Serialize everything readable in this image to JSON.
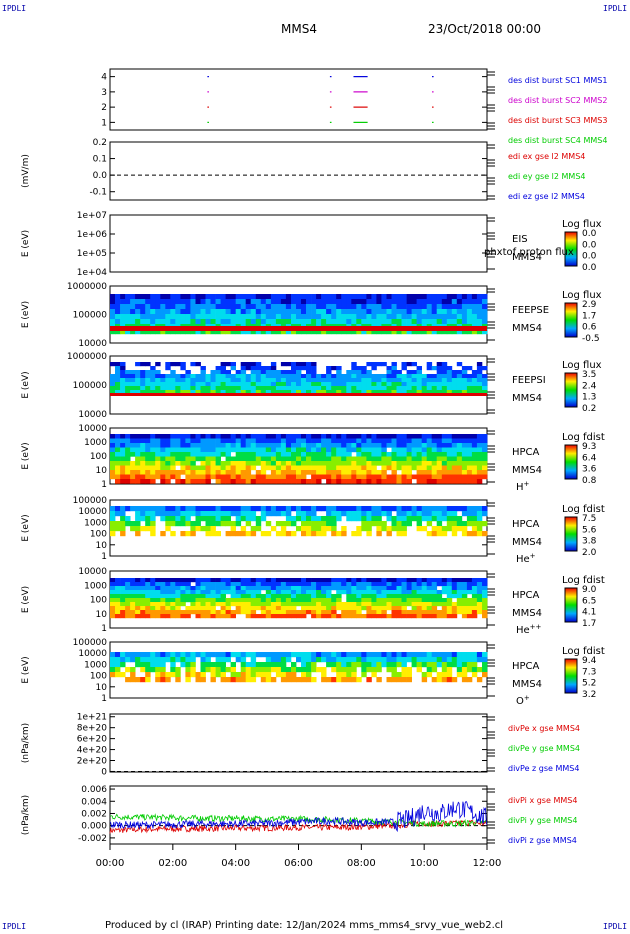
{
  "corners": {
    "tl": "IPDLI",
    "tr": "IPDLI",
    "bl": "IPDLI",
    "br": "IPDLI"
  },
  "header": {
    "spacecraft": "MMS4",
    "date": "23/Oct/2018 00:00"
  },
  "footer": "Produced by cl (IRAP)   Printing date: 12/Jan/2024   mms_mms4_srvy_vue_web2.cl",
  "colors": {
    "red": "#dd0000",
    "green": "#00cc00",
    "blue": "#0000dd",
    "magenta": "#cc00cc"
  },
  "chart_data": [
    {
      "id": "burst",
      "type": "scatter",
      "ylim": [
        0.5,
        4.5
      ],
      "yticks": [
        "1",
        "2",
        "3",
        "4"
      ],
      "series": [
        {
          "name": "des dist burst SC1 MMS1",
          "color": "#0000dd",
          "level": 4
        },
        {
          "name": "des dist burst SC2 MMS2",
          "color": "#cc00cc",
          "level": 3
        },
        {
          "name": "des dist burst SC3 MMS3",
          "color": "#dd0000",
          "level": 2
        },
        {
          "name": "des dist burst SC4 MMS4",
          "color": "#00cc00",
          "level": 1
        }
      ],
      "intervals_hours": [
        [
          3.1,
          3.15
        ],
        [
          7.0,
          7.05
        ],
        [
          7.75,
          8.2
        ],
        [
          10.25,
          10.3
        ]
      ]
    },
    {
      "id": "edi",
      "type": "line",
      "ylabel": "(mV/m)",
      "ylim": [
        -0.15,
        0.2
      ],
      "yticks": [
        "-0.1",
        "0.0",
        "0.1",
        "0.2"
      ],
      "series": [
        {
          "name": "edi ex gse l2 MMS4",
          "color": "#dd0000"
        },
        {
          "name": "edi ey gse l2 MMS4",
          "color": "#00cc00"
        },
        {
          "name": "edi ez gse l2 MMS4",
          "color": "#0000dd"
        }
      ],
      "values": []
    },
    {
      "id": "eis",
      "type": "heatmap",
      "ylabel": "E (eV)",
      "yticks": [
        "1e+04",
        "1e+05",
        "1e+06",
        "1e+07"
      ],
      "labels": [
        "EIS",
        "MMS4"
      ],
      "overlap_label": "phxtof proton flux",
      "cbar_title": "Log flux",
      "cbar_ticks": [
        "0.0",
        "0.0",
        "0.0",
        "0.0"
      ]
    },
    {
      "id": "feeps_e",
      "type": "heatmap",
      "ylabel": "E (eV)",
      "yticks": [
        "10000",
        "100000",
        "1000000"
      ],
      "labels": [
        "FEEPSE",
        "MMS4"
      ],
      "cbar_title": "Log flux",
      "cbar_ticks": [
        "2.9",
        "1.7",
        "0.6",
        "-0.5"
      ]
    },
    {
      "id": "feeps_i",
      "type": "heatmap",
      "ylabel": "E (eV)",
      "yticks": [
        "10000",
        "100000",
        "1000000"
      ],
      "labels": [
        "FEEPSI",
        "MMS4"
      ],
      "cbar_title": "Log flux",
      "cbar_ticks": [
        "3.5",
        "2.4",
        "1.3",
        "0.2"
      ]
    },
    {
      "id": "hpca_h",
      "type": "heatmap",
      "ylabel": "E (eV)",
      "yticks": [
        "1",
        "10",
        "100",
        "1000",
        "10000"
      ],
      "labels": [
        "HPCA",
        "MMS4"
      ],
      "species": "H",
      "charge": "+",
      "cbar_title": "Log fdist",
      "cbar_ticks": [
        "9.3",
        "6.4",
        "3.6",
        "0.8"
      ]
    },
    {
      "id": "hpca_he1",
      "type": "heatmap",
      "ylabel": "E (eV)",
      "yticks": [
        "1",
        "10",
        "100",
        "1000",
        "10000",
        "100000"
      ],
      "labels": [
        "HPCA",
        "MMS4"
      ],
      "species": "He",
      "charge": "+",
      "cbar_title": "Log fdist",
      "cbar_ticks": [
        "7.5",
        "5.6",
        "3.8",
        "2.0"
      ]
    },
    {
      "id": "hpca_he2",
      "type": "heatmap",
      "ylabel": "E (eV)",
      "yticks": [
        "1",
        "10",
        "100",
        "1000",
        "10000"
      ],
      "labels": [
        "HPCA",
        "MMS4"
      ],
      "species": "He",
      "charge": "++",
      "cbar_title": "Log fdist",
      "cbar_ticks": [
        "9.0",
        "6.5",
        "4.1",
        "1.7"
      ]
    },
    {
      "id": "hpca_o",
      "type": "heatmap",
      "ylabel": "E (eV)",
      "yticks": [
        "1",
        "10",
        "100",
        "1000",
        "10000",
        "100000"
      ],
      "labels": [
        "HPCA",
        "MMS4"
      ],
      "species": "O",
      "charge": "+",
      "cbar_title": "Log fdist",
      "cbar_ticks": [
        "9.4",
        "7.3",
        "5.2",
        "3.2"
      ]
    },
    {
      "id": "divpe",
      "type": "line",
      "ylabel": "(nPa/km)",
      "ylim": [
        -1e+19,
        1.05e+21
      ],
      "yticks": [
        "0",
        "2e+20",
        "4e+20",
        "6e+20",
        "8e+20",
        "1e+21"
      ],
      "series": [
        {
          "name": "divPe x gse MMS4",
          "color": "#dd0000"
        },
        {
          "name": "divPe y gse MMS4",
          "color": "#00cc00"
        },
        {
          "name": "divPe z gse MMS4",
          "color": "#0000dd"
        }
      ],
      "values": []
    },
    {
      "id": "divpi",
      "type": "line",
      "ylabel": "(nPa/km)",
      "ylim": [
        -0.003,
        0.0065
      ],
      "yticks": [
        "-0.002",
        "0.000",
        "0.002",
        "0.004",
        "0.006"
      ],
      "series": [
        {
          "name": "divPi x gse MMS4",
          "color": "#dd0000"
        },
        {
          "name": "divPi y gse MMS4",
          "color": "#00cc00"
        },
        {
          "name": "divPi z gse MMS4",
          "color": "#0000dd"
        }
      ],
      "x_hours": [
        0,
        1,
        2,
        3,
        4,
        5,
        6,
        7,
        8,
        9,
        9.5,
        10,
        10.5,
        11,
        11.5,
        12
      ],
      "values": [
        [
          -0.0008,
          -0.0006,
          -0.0005,
          -0.0005,
          -0.0004,
          -0.0004,
          -0.0003,
          -0.0003,
          -0.0002,
          0.0,
          0.0002,
          0.0004,
          0.0003,
          0.0004,
          0.0005,
          0.0003
        ],
        [
          0.0015,
          0.0014,
          0.0013,
          0.0012,
          0.0012,
          0.0011,
          0.0011,
          0.001,
          0.0008,
          0.0006,
          0.0005,
          0.0003,
          0.0004,
          0.0003,
          0.0005,
          0.0006
        ],
        [
          0.0002,
          0.0001,
          0.0002,
          0.0003,
          0.0003,
          0.0004,
          0.0006,
          0.0008,
          0.0005,
          0.0006,
          0.001,
          0.0025,
          0.002,
          0.003,
          0.0022,
          0.0012
        ]
      ]
    },
    {
      "id": "time_axis",
      "type": "axis",
      "xticks": [
        "00:00",
        "02:00",
        "04:00",
        "06:00",
        "08:00",
        "10:00",
        "12:00"
      ]
    }
  ]
}
